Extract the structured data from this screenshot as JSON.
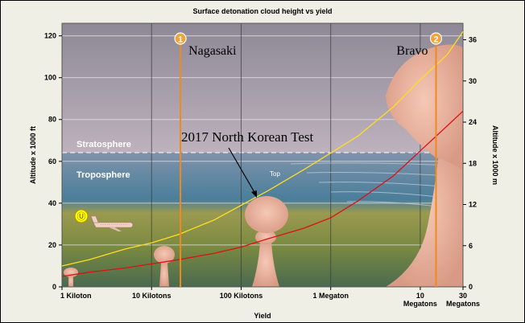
{
  "chart_data": {
    "type": "line",
    "title": "Surface detonation cloud height vs yield",
    "xlabel": "Yield",
    "ylabel": "Altitude x 1000 ft",
    "ylabel_right": "Altitude x 1000 m",
    "x_scale": "log",
    "x_unit": "kilotons",
    "xlim": [
      1,
      30000
    ],
    "ylim": [
      0,
      126
    ],
    "ylim_right": [
      0,
      38.4
    ],
    "x_ticks": [
      {
        "value": 1,
        "label": "1 Kiloton"
      },
      {
        "value": 10,
        "label": "10 Kilotons"
      },
      {
        "value": 100,
        "label": "100 Kilotons"
      },
      {
        "value": 1000,
        "label": "1 Megaton"
      },
      {
        "value": 10000,
        "label": "10 Megatons"
      },
      {
        "value": 30000,
        "label": "30 Megatons"
      }
    ],
    "y_ticks": [
      0,
      20,
      40,
      60,
      80,
      100,
      120
    ],
    "y_ticks_right": [
      0,
      6,
      12,
      18,
      24,
      30,
      36
    ],
    "grid": true,
    "series": [
      {
        "color": "#ffdd22",
        "x": [
          1,
          2,
          5,
          10,
          20,
          50,
          100,
          200,
          500,
          1000,
          2000,
          5000,
          10000,
          20000,
          30000
        ],
        "y": [
          10,
          13,
          18,
          21,
          25,
          32,
          39,
          46,
          56,
          64,
          72,
          86,
          99,
          111,
          122
        ]
      },
      {
        "color": "#dd1111",
        "x": [
          1,
          2,
          5,
          10,
          20,
          50,
          100,
          200,
          500,
          1000,
          2000,
          5000,
          10000,
          20000,
          30000
        ],
        "y": [
          5,
          7,
          9,
          11,
          13,
          16,
          19,
          23,
          28,
          33,
          41,
          53,
          65,
          77,
          84
        ]
      }
    ],
    "layers": [
      {
        "label": "Stratosphere",
        "from": 64,
        "to": 126
      },
      {
        "label": "Troposphere",
        "from": 0,
        "to": 64
      }
    ],
    "markers": [
      {
        "number": "1",
        "label": "Nagasaki",
        "x": 21
      },
      {
        "number": "2",
        "label": "Bravo",
        "x": 15000
      }
    ],
    "annotations": [
      {
        "text": "2017 North Korean Test",
        "x": 120,
        "y": 42
      },
      {
        "text": "Top",
        "x": 250,
        "y": 54
      }
    ],
    "airliner_badge": "Ⓤ"
  }
}
